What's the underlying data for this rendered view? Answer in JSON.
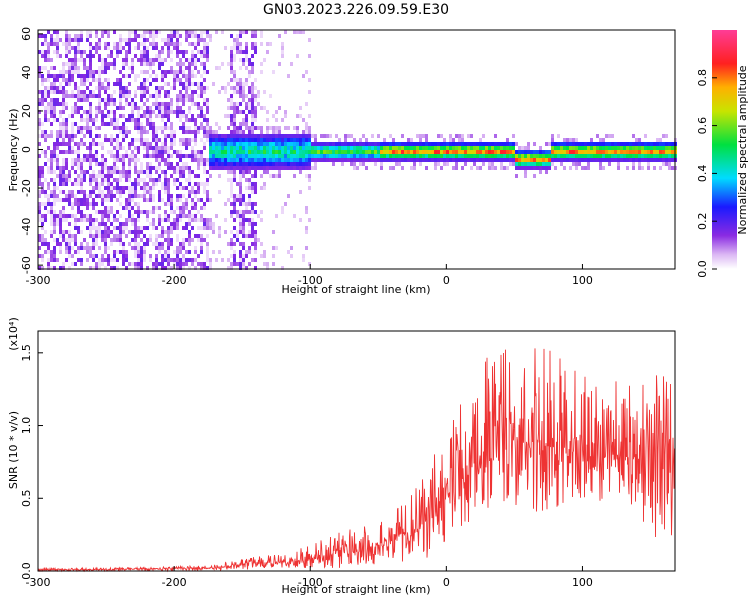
{
  "title": "GN03.2023.226.09.59.E30",
  "chart_data": [
    {
      "type": "heatmap",
      "xlabel": "Height of straight line (km)",
      "ylabel": "Frequency (Hz)",
      "xlim": [
        -300,
        168
      ],
      "ylim": [
        -62,
        62
      ],
      "x_ticks": [
        -300,
        -200,
        -100,
        0,
        100
      ],
      "y_ticks": [
        -60,
        -40,
        -20,
        0,
        20,
        40,
        60
      ],
      "colorbar": {
        "label": "Normalized spectral amplitude",
        "ticks": [
          "0.0",
          "0.2",
          "0.4",
          "0.6",
          "0.8"
        ],
        "range": [
          0,
          1
        ],
        "colormap": "rainbow (white-violet-blue-cyan-green-yellow-red-magenta)"
      },
      "description_regions": [
        {
          "x_range": [
            -300,
            -175
          ],
          "y_range": [
            -62,
            62
          ],
          "amplitude": 0.1
        },
        {
          "x_range": [
            -160,
            -140
          ],
          "y_range": [
            -62,
            62
          ],
          "amplitude": 0.1
        },
        {
          "x_range": [
            -175,
            -100
          ],
          "y_range": [
            -10,
            10
          ],
          "amplitude": 0.35
        },
        {
          "x_range": [
            -100,
            168
          ],
          "y_range": [
            -4,
            4
          ],
          "amplitude": 0.75
        }
      ]
    },
    {
      "type": "line",
      "xlabel": "Height of straight line (km)",
      "ylabel": "SNR (10 * v/v)",
      "y_scale_label": "(x10⁴)",
      "xlim": [
        -300,
        168
      ],
      "ylim": [
        0,
        1.65
      ],
      "x_ticks": [
        -300,
        -200,
        -100,
        0,
        100
      ],
      "y_ticks": [
        "0.0",
        "0.5",
        "1.0",
        "1.5"
      ],
      "series": [
        {
          "color": "#ee3333",
          "x": [
            -300,
            -250,
            -200,
            -170,
            -150,
            -140,
            -120,
            -100,
            -80,
            -60,
            -50,
            -40,
            -30,
            -20,
            -10,
            0,
            10,
            20,
            30,
            40,
            50,
            60,
            70,
            80,
            90,
            100,
            110,
            120,
            130,
            140,
            150,
            160,
            168
          ],
          "y": [
            0.01,
            0.01,
            0.02,
            0.02,
            0.04,
            0.05,
            0.06,
            0.08,
            0.12,
            0.16,
            0.18,
            0.2,
            0.26,
            0.3,
            0.4,
            0.52,
            0.62,
            0.74,
            0.82,
            0.85,
            0.9,
            0.88,
            0.9,
            0.85,
            0.84,
            0.82,
            0.8,
            0.8,
            0.8,
            0.78,
            0.8,
            0.8,
            0.78
          ],
          "max_envelope": [
            0.02,
            0.02,
            0.03,
            0.04,
            0.09,
            0.1,
            0.12,
            0.18,
            0.26,
            0.32,
            0.34,
            0.4,
            0.5,
            0.6,
            0.8,
            0.95,
            1.15,
            1.3,
            1.5,
            1.55,
            1.55,
            1.52,
            1.65,
            1.5,
            1.4,
            1.5,
            1.42,
            1.35,
            1.28,
            1.3,
            1.45,
            1.52,
            1.5
          ],
          "min_envelope": [
            0.0,
            0.0,
            0.0,
            0.0,
            0.01,
            0.01,
            0.01,
            0.02,
            0.02,
            0.03,
            0.03,
            0.05,
            0.06,
            0.08,
            0.1,
            0.2,
            0.28,
            0.34,
            0.4,
            0.38,
            0.42,
            0.38,
            0.3,
            0.34,
            0.4,
            0.45,
            0.46,
            0.5,
            0.48,
            0.44,
            0.2,
            0.05,
            0.2
          ]
        }
      ]
    }
  ]
}
